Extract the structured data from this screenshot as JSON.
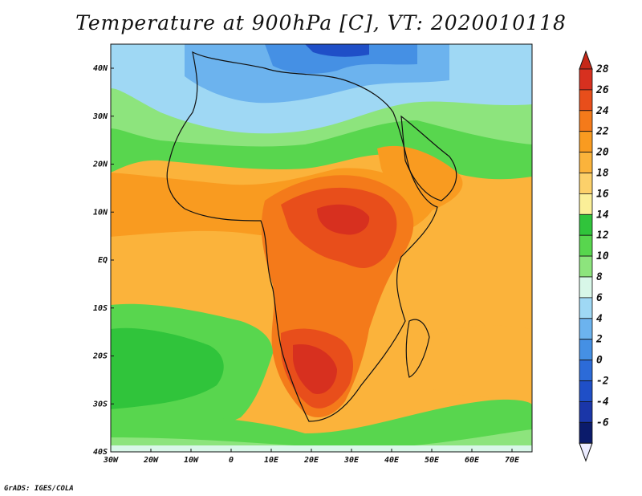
{
  "title": "Temperature at 900hPa [C], VT: 2020010118",
  "credit": "GrADS: IGES/COLA",
  "lat_labels": [
    "40N",
    "30N",
    "20N",
    "10N",
    "EQ",
    "10S",
    "20S",
    "30S",
    "40S"
  ],
  "lon_labels": [
    "30W",
    "20W",
    "10W",
    "0",
    "10E",
    "20E",
    "30E",
    "40E",
    "50E",
    "60E",
    "70E"
  ],
  "colorbar": {
    "levels": [
      28,
      26,
      24,
      22,
      20,
      18,
      16,
      14,
      12,
      10,
      8,
      6,
      4,
      2,
      0,
      -2,
      -4,
      -6
    ],
    "colors": [
      "#d7301f",
      "#e84e1b",
      "#f47a1a",
      "#f99b20",
      "#fbb33b",
      "#fcd06a",
      "#fbef98",
      "#30c43b",
      "#58d64e",
      "#8de47d",
      "#d8f7e8",
      "#9fd8f4",
      "#6cb3ee",
      "#4590e4",
      "#2c6bd8",
      "#1f4fc7",
      "#1a36a8",
      "#0b1b6b"
    ],
    "top_arrow_color": "#c62818",
    "bottom_arrow_color": "#ececff"
  }
}
